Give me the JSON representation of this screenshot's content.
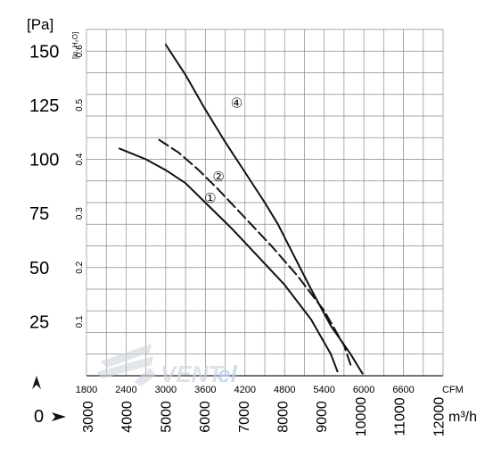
{
  "chart_data": {
    "type": "line",
    "y_unit_primary": "[Pa]",
    "y_unit_secondary": "[in. H₂O]",
    "x_unit_primary": "CFM",
    "x_unit_secondary": "m³/h",
    "pa_ticks": [
      "150",
      "125",
      "100",
      "75",
      "50",
      "25",
      "0"
    ],
    "inh2o_ticks": [
      "0.6",
      "0.5",
      "0.4",
      "0.3",
      "0.2",
      "0.1"
    ],
    "cfm_ticks": [
      "1800",
      "2400",
      "3000",
      "3600",
      "4200",
      "4800",
      "5400",
      "6000",
      "6600"
    ],
    "m3h_ticks": [
      "3000",
      "4000",
      "5000",
      "6000",
      "7000",
      "8000",
      "9000",
      "10000",
      "11000",
      "12000"
    ],
    "xlim_cfm": [
      1800,
      7200
    ],
    "ylim_pa": [
      0,
      160
    ],
    "grid": true,
    "series": [
      {
        "name": "①",
        "dashed": false,
        "x": [
          2300,
          2700,
          3000,
          3300,
          3600,
          4000,
          4400,
          4800,
          5200,
          5500,
          5600
        ],
        "y": [
          105,
          100,
          95,
          89,
          80,
          68,
          55,
          42,
          26,
          10,
          2
        ]
      },
      {
        "name": "②",
        "dashed": true,
        "x": [
          2900,
          3200,
          3500,
          3800,
          4200,
          4600,
          5000,
          5400,
          5700,
          5800
        ],
        "y": [
          109,
          103,
          95,
          86,
          73,
          60,
          46,
          30,
          14,
          5
        ]
      },
      {
        "name": "④",
        "dashed": false,
        "x": [
          3000,
          3300,
          3600,
          3900,
          4200,
          4500,
          4700,
          4900,
          5200,
          5500,
          5800,
          5980
        ],
        "y": [
          153,
          139,
          123,
          108,
          94,
          80,
          70,
          58,
          40,
          23,
          10,
          1
        ]
      }
    ]
  }
}
